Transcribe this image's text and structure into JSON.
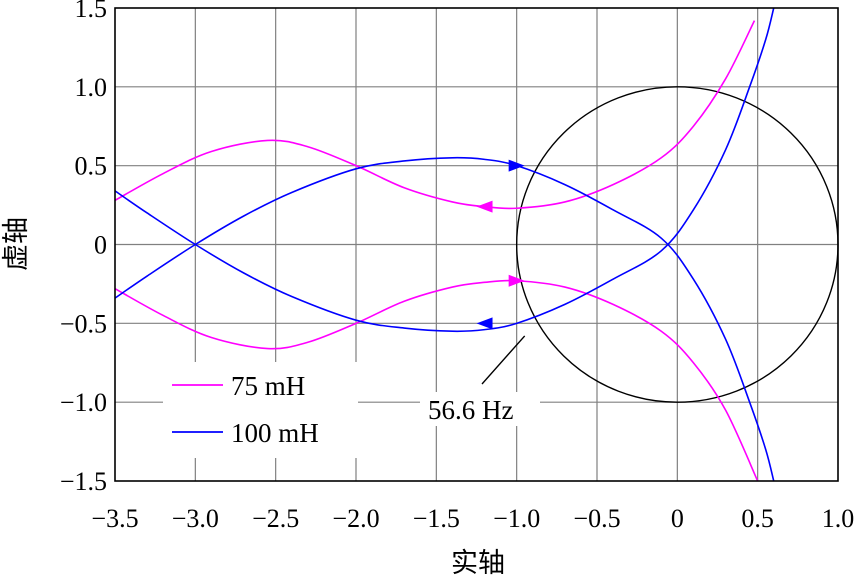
{
  "chart_data": {
    "type": "line",
    "xlabel": "实轴",
    "ylabel": "虚轴",
    "xlim": [
      -3.5,
      1.0
    ],
    "ylim": [
      -1.5,
      1.5
    ],
    "grid": true,
    "legend_position": "bottom-left",
    "x_ticks": [
      "−3.5",
      "−3.0",
      "−2.5",
      "−2.0",
      "−1.5",
      "−1.0",
      "−0.5",
      "0",
      "0.5",
      "1.0"
    ],
    "x_tick_values": [
      -3.5,
      -3.0,
      -2.5,
      -2.0,
      -1.5,
      -1.0,
      -0.5,
      0,
      0.5,
      1.0
    ],
    "y_ticks": [
      "1.5",
      "1.0",
      "0.5",
      "0",
      "−0.5",
      "−1.0",
      "−1.5"
    ],
    "y_tick_values": [
      1.5,
      1.0,
      0.5,
      0,
      -0.5,
      -1.0,
      -1.5
    ],
    "unit_circle": {
      "center": [
        0,
        0
      ],
      "radius": 1.0,
      "color": "#000000"
    },
    "series": [
      {
        "name": "75 mH",
        "color": "#ff00ff",
        "branches": [
          {
            "points": [
              [
                -3.5,
                0.28
              ],
              [
                -3.2,
                0.45
              ],
              [
                -2.9,
                0.59
              ],
              [
                -2.55,
                0.66
              ],
              [
                -2.3,
                0.62
              ],
              [
                -2.0,
                0.5
              ],
              [
                -1.7,
                0.36
              ],
              [
                -1.4,
                0.27
              ],
              [
                -1.2,
                0.24
              ],
              [
                -1.0,
                0.23
              ],
              [
                -0.7,
                0.27
              ],
              [
                -0.4,
                0.38
              ],
              [
                -0.1,
                0.55
              ],
              [
                0.1,
                0.75
              ],
              [
                0.3,
                1.05
              ],
              [
                0.48,
                1.42
              ]
            ],
            "arrows": [
              {
                "at": [
                  -1.2,
                  0.24
                ],
                "dir": "left"
              }
            ]
          },
          {
            "points": [
              [
                -3.5,
                -0.28
              ],
              [
                -3.2,
                -0.45
              ],
              [
                -2.9,
                -0.59
              ],
              [
                -2.55,
                -0.66
              ],
              [
                -2.3,
                -0.62
              ],
              [
                -2.0,
                -0.5
              ],
              [
                -1.7,
                -0.36
              ],
              [
                -1.4,
                -0.27
              ],
              [
                -1.2,
                -0.24
              ],
              [
                -1.0,
                -0.23
              ],
              [
                -0.7,
                -0.27
              ],
              [
                -0.4,
                -0.38
              ],
              [
                -0.1,
                -0.55
              ],
              [
                0.1,
                -0.75
              ],
              [
                0.3,
                -1.05
              ],
              [
                0.5,
                -1.5
              ]
            ],
            "arrows": [
              {
                "at": [
                  -1.0,
                  -0.23
                ],
                "dir": "right"
              }
            ]
          }
        ]
      },
      {
        "name": "100 mH",
        "color": "#0000ff",
        "branches": [
          {
            "points": [
              [
                -3.5,
                -0.34
              ],
              [
                -3.3,
                -0.2
              ],
              [
                -3.0,
                0.0
              ],
              [
                -2.7,
                0.18
              ],
              [
                -2.4,
                0.33
              ],
              [
                -2.0,
                0.48
              ],
              [
                -1.7,
                0.53
              ],
              [
                -1.4,
                0.55
              ],
              [
                -1.2,
                0.54
              ],
              [
                -1.0,
                0.5
              ],
              [
                -0.7,
                0.38
              ],
              [
                -0.4,
                0.22
              ],
              [
                -0.1,
                0.04
              ],
              [
                0.1,
                -0.22
              ],
              [
                0.3,
                -0.6
              ],
              [
                0.45,
                -1.0
              ],
              [
                0.55,
                -1.3
              ],
              [
                0.6,
                -1.5
              ]
            ],
            "arrows": [
              {
                "at": [
                  -1.0,
                  0.5
                ],
                "dir": "right"
              }
            ]
          },
          {
            "points": [
              [
                -3.5,
                0.34
              ],
              [
                -3.3,
                0.2
              ],
              [
                -3.0,
                0.0
              ],
              [
                -2.7,
                -0.18
              ],
              [
                -2.4,
                -0.33
              ],
              [
                -2.0,
                -0.48
              ],
              [
                -1.7,
                -0.53
              ],
              [
                -1.4,
                -0.55
              ],
              [
                -1.2,
                -0.54
              ],
              [
                -1.0,
                -0.5
              ],
              [
                -0.7,
                -0.38
              ],
              [
                -0.4,
                -0.22
              ],
              [
                -0.1,
                -0.04
              ],
              [
                0.1,
                0.22
              ],
              [
                0.3,
                0.6
              ],
              [
                0.45,
                1.0
              ],
              [
                0.55,
                1.3
              ],
              [
                0.6,
                1.5
              ]
            ],
            "arrows": [
              {
                "at": [
                  -1.2,
                  -0.5
                ],
                "dir": "left"
              }
            ]
          }
        ]
      }
    ],
    "annotations": [
      {
        "text": "56.6 Hz",
        "point": [
          -0.95,
          -0.58
        ]
      }
    ]
  }
}
